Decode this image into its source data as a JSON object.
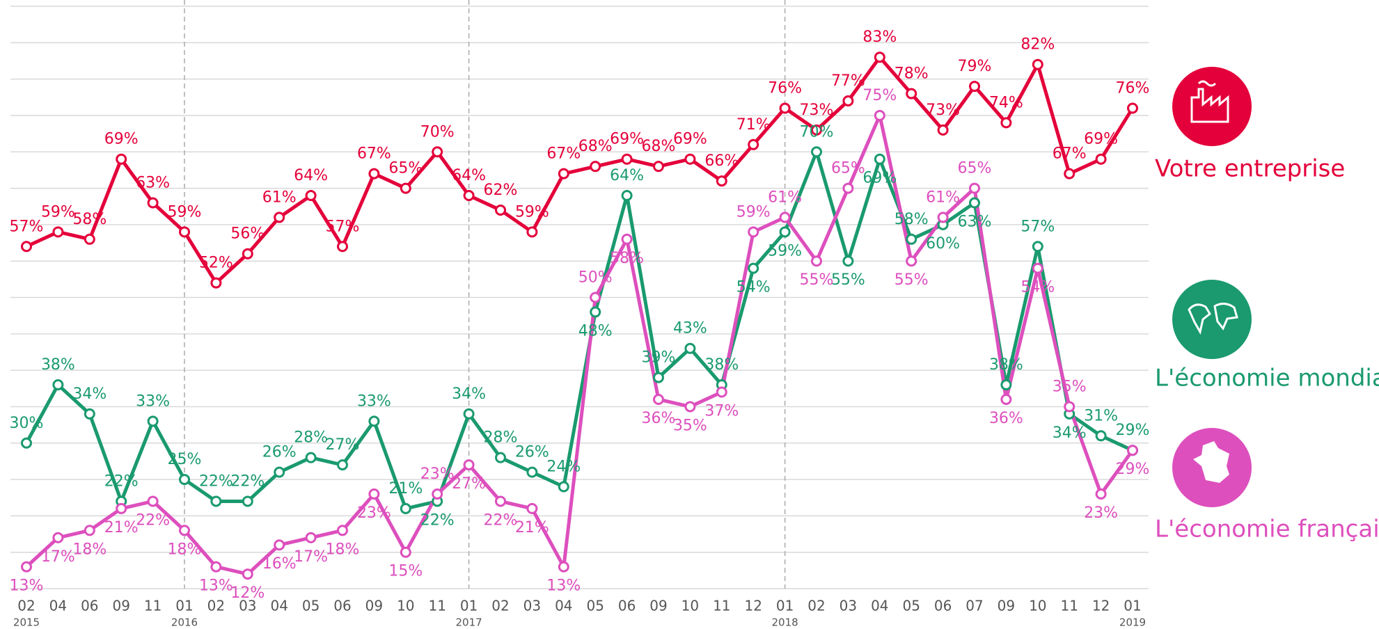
{
  "chart_data": {
    "type": "line",
    "categories": [
      "02",
      "04",
      "06",
      "09",
      "11",
      "01",
      "02",
      "03",
      "04",
      "05",
      "06",
      "09",
      "10",
      "11",
      "01",
      "02",
      "03",
      "04",
      "05",
      "06",
      "09",
      "10",
      "11",
      "12",
      "01",
      "02",
      "03",
      "04",
      "05",
      "06",
      "07",
      "09",
      "10",
      "11",
      "12",
      "01"
    ],
    "years": [
      "2015",
      null,
      null,
      null,
      null,
      "2016",
      null,
      null,
      null,
      null,
      null,
      null,
      null,
      null,
      "2017",
      null,
      null,
      null,
      null,
      null,
      null,
      null,
      null,
      null,
      "2018",
      null,
      null,
      null,
      null,
      null,
      null,
      null,
      null,
      null,
      null,
      "2019"
    ],
    "ylim": [
      10,
      90
    ],
    "grid": true,
    "series": [
      {
        "name": "Votre entreprise",
        "color": "#e4003a",
        "values": [
          57,
          59,
          58,
          69,
          63,
          59,
          52,
          56,
          61,
          64,
          57,
          67,
          65,
          70,
          64,
          62,
          59,
          67,
          68,
          69,
          68,
          69,
          66,
          71,
          76,
          73,
          77,
          83,
          78,
          73,
          79,
          74,
          82,
          67,
          69,
          76
        ],
        "value_labels": [
          "57%",
          "59%",
          "58%",
          "69%",
          "63%",
          "59%",
          "52%",
          "56%",
          "61%",
          "64%",
          "57%",
          "67%",
          "65%",
          "70%",
          "64%",
          "62%",
          "59%",
          "67%",
          "68%",
          "69%",
          "68%",
          "69%",
          "66%",
          "71%",
          "76%",
          "73%",
          "77%",
          "83%",
          "78%",
          "73%",
          "79%",
          "74%",
          "82%",
          "67%",
          "69%",
          "76%"
        ]
      },
      {
        "name": "L'économie mondiale",
        "color": "#1a9a6e",
        "values": [
          30,
          38,
          34,
          22,
          33,
          25,
          22,
          22,
          26,
          28,
          27,
          33,
          21,
          22,
          34,
          28,
          26,
          24,
          48,
          64,
          39,
          43,
          38,
          54,
          59,
          70,
          55,
          69,
          58,
          60,
          63,
          38,
          57,
          34,
          31,
          29
        ],
        "value_labels": [
          "30%",
          "38%",
          "34%",
          "22%",
          "33%",
          "25%",
          "22%",
          "22%",
          "26%",
          "28%",
          "27%",
          "33%",
          "21%",
          "22%",
          "34%",
          "28%",
          "26%",
          "24%",
          "48%",
          "64%",
          "39%",
          "43%",
          "38%",
          "54%",
          "59%",
          "70%",
          "55%",
          "69%",
          "58%",
          "60%",
          "63%",
          "38%",
          "57%",
          "34%",
          "31%",
          "29%"
        ]
      },
      {
        "name": "L'économie française",
        "color": "#dd4fbd",
        "values": [
          13,
          17,
          18,
          21,
          22,
          18,
          13,
          12,
          16,
          17,
          18,
          23,
          15,
          23,
          27,
          22,
          21,
          13,
          50,
          58,
          36,
          35,
          37,
          59,
          61,
          55,
          65,
          75,
          55,
          61,
          65,
          36,
          54,
          35,
          23,
          29
        ],
        "value_labels": [
          "13%",
          "17%",
          "18%",
          "21%",
          "22%",
          "18%",
          "13%",
          "12%",
          "16%",
          "17%",
          "18%",
          "23%",
          "15%",
          "23%",
          "27%",
          "22%",
          "21%",
          "13%",
          "50%",
          "58%",
          "36%",
          "35%",
          "37%",
          "59%",
          "61%",
          "55%",
          "65%",
          "75%",
          "55%",
          "61%",
          "65%",
          "36%",
          "54%",
          "35%",
          "23%",
          "29%"
        ]
      }
    ]
  }
}
